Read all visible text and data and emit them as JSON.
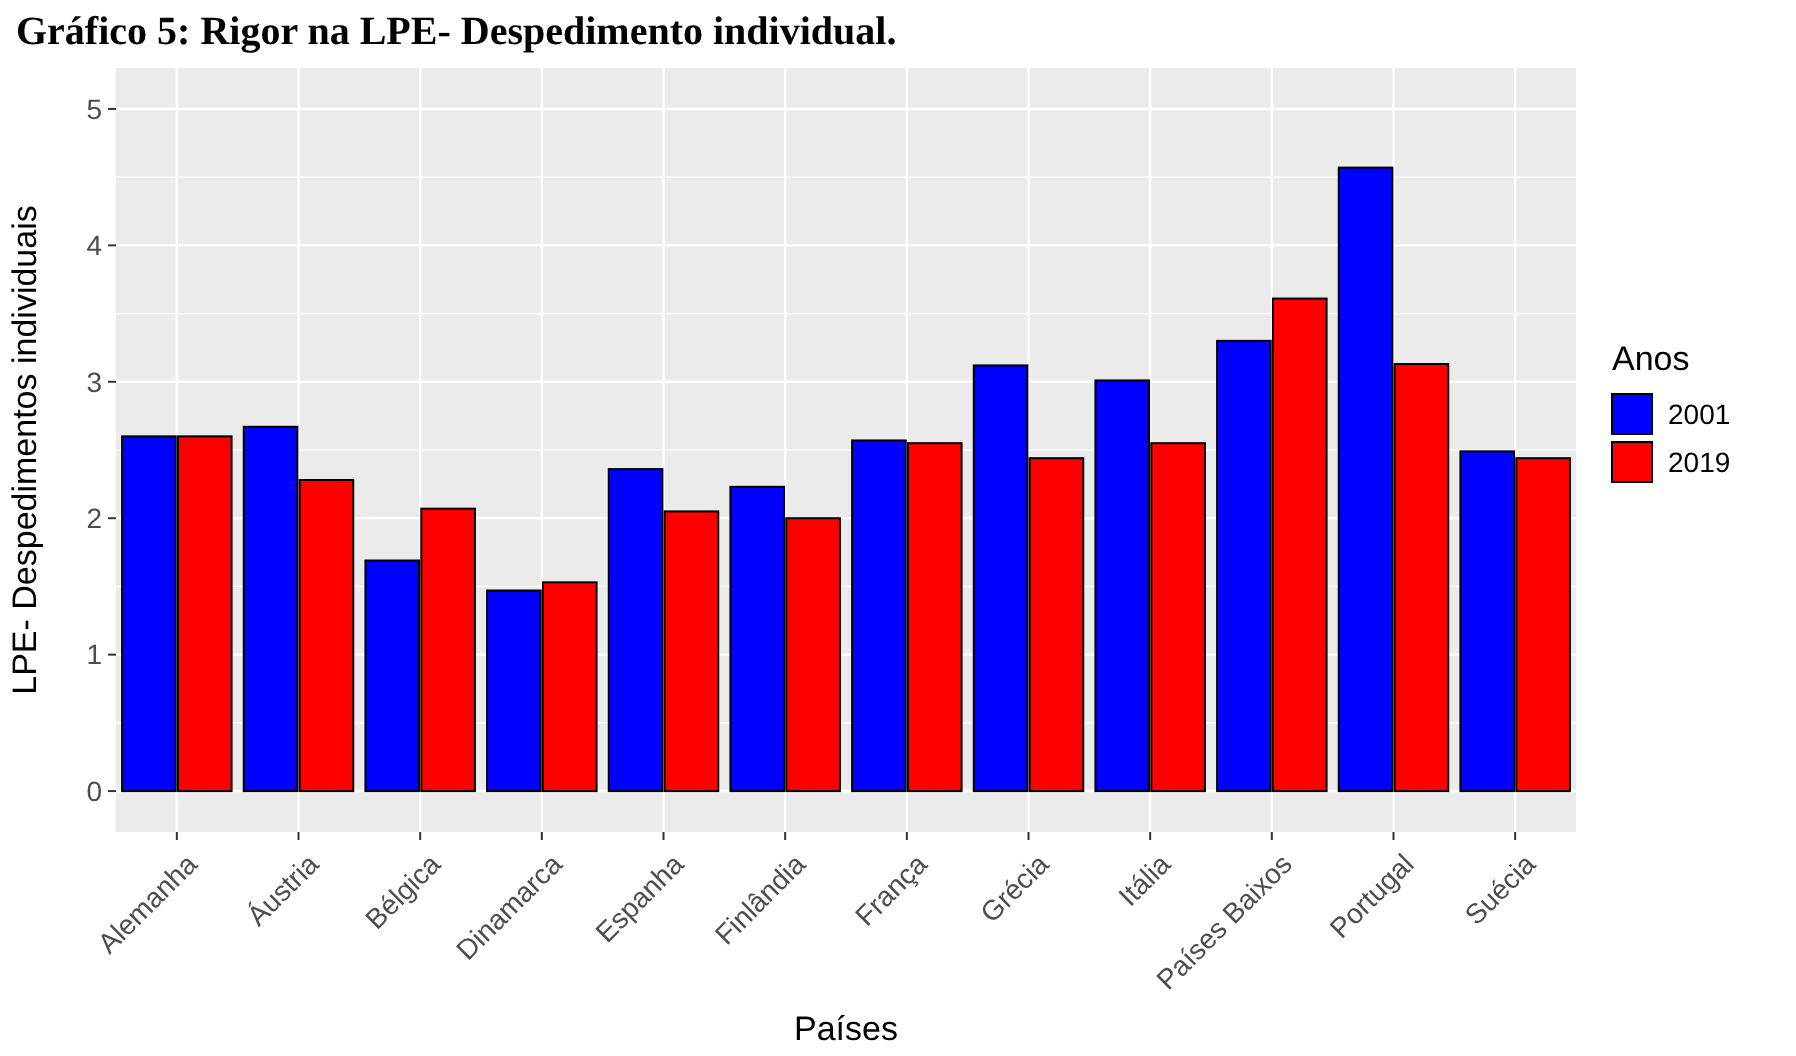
{
  "chart_data": {
    "type": "bar",
    "title": "Gráfico 5: Rigor na LPE- Despedimento individual.",
    "xlabel": "Países",
    "ylabel": "LPE- Despedimentos individuais",
    "legend_title": "Anos",
    "categories": [
      "Alemanha",
      "Áustria",
      "Bélgica",
      "Dinamarca",
      "Espanha",
      "Finlândia",
      "França",
      "Grécia",
      "Itália",
      "Países Baixos",
      "Portugal",
      "Suécia"
    ],
    "series": [
      {
        "name": "2001",
        "color": "#0000ff",
        "values": [
          2.6,
          2.67,
          1.69,
          1.47,
          2.36,
          2.23,
          2.57,
          3.12,
          3.01,
          3.3,
          4.57,
          2.49
        ]
      },
      {
        "name": "2019",
        "color": "#ff0000",
        "values": [
          2.6,
          2.28,
          2.07,
          1.53,
          2.05,
          2.0,
          2.55,
          2.44,
          2.55,
          3.61,
          3.13,
          2.44
        ]
      }
    ],
    "ylim": [
      -0.3,
      5.3
    ],
    "yticks": [
      0,
      1,
      2,
      3,
      4,
      5
    ],
    "grid": true,
    "legend": "right"
  }
}
